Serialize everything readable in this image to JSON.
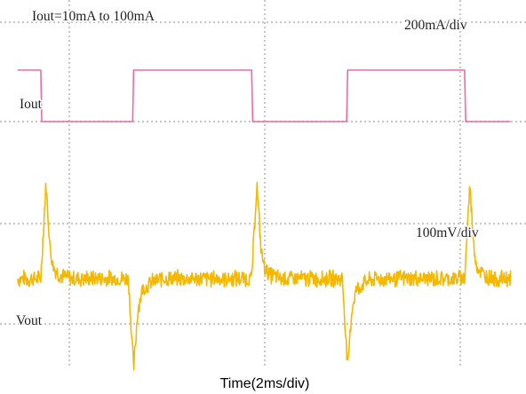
{
  "chart_data": {
    "type": "line",
    "title": "Iout=10mA to 100mA",
    "xlabel": "Time(2ms/div)",
    "x_unit": "ms",
    "x_per_div": 2,
    "grid": true,
    "grid_style": "dotted",
    "series": [
      {
        "name": "Iout",
        "color": "#f06aa0",
        "scale_label": "200mA/div",
        "high_mA": 100,
        "low_mA": 10,
        "x": [
          0,
          1.1,
          1.15,
          5.5,
          5.55,
          11.2,
          11.25,
          15.75,
          15.8,
          21.4,
          21.45,
          23.6
        ],
        "y": [
          100,
          100,
          10,
          10,
          100,
          100,
          10,
          10,
          100,
          100,
          10,
          10
        ]
      },
      {
        "name": "Vout",
        "color": "#f5b800",
        "scale_label": "100mV/div",
        "noise_band_mV": [
          -10,
          10
        ],
        "x": [
          0,
          1.1,
          1.35,
          1.55,
          1.7,
          2.0,
          2.5,
          5.3,
          5.55,
          5.75,
          5.95,
          6.4,
          6.9,
          11.2,
          11.45,
          11.65,
          11.8,
          12.1,
          12.6,
          15.55,
          15.8,
          16.0,
          16.2,
          16.65,
          17.1,
          21.4,
          21.65,
          21.85,
          22.0,
          22.3,
          22.8,
          23.6
        ],
        "y": [
          0,
          0,
          99,
          30,
          12,
          4,
          0,
          0,
          -95,
          -32,
          -12,
          -4,
          0,
          0,
          99,
          30,
          12,
          4,
          0,
          0,
          -95,
          -32,
          -12,
          -4,
          0,
          0,
          99,
          30,
          12,
          4,
          0,
          0
        ]
      }
    ]
  },
  "labels": {
    "title": "Iout=10mA to 100mA",
    "iout_scale": "200mA/div",
    "iout_name": "Iout",
    "vout_scale": "100mV/div",
    "vout_name": "Vout",
    "xlabel": "Time(2ms/div)"
  }
}
